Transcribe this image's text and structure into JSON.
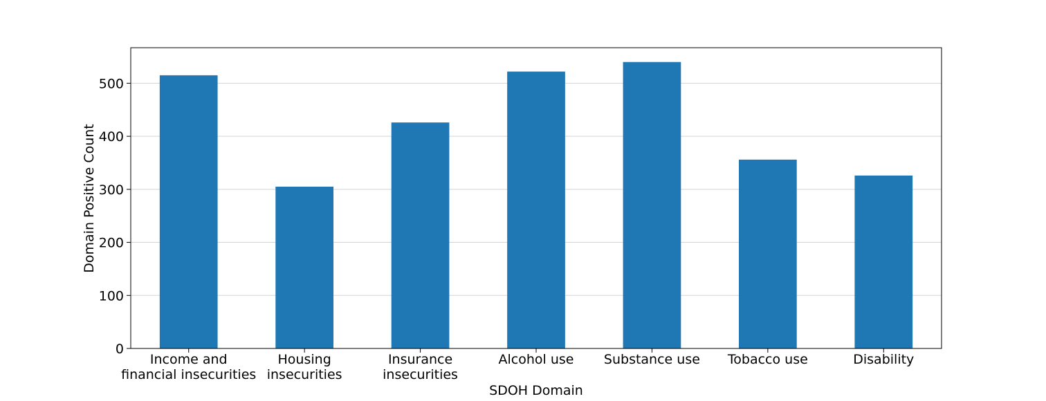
{
  "chart_data": {
    "type": "bar",
    "title": "",
    "xlabel": "SDOH Domain",
    "ylabel": "Domain Positive Count",
    "categories": [
      [
        "Income and",
        "financial insecurities"
      ],
      [
        "Housing",
        "insecurities"
      ],
      [
        "Insurance",
        "insecurities"
      ],
      [
        "Alcohol use"
      ],
      [
        "Substance use"
      ],
      [
        "Tobacco use"
      ],
      [
        "Disability"
      ]
    ],
    "values": [
      515,
      305,
      426,
      522,
      540,
      356,
      326
    ],
    "ylim": [
      0,
      567
    ],
    "yticks": [
      0,
      100,
      200,
      300,
      400,
      500
    ],
    "grid": {
      "y": true,
      "x": false
    },
    "colors": {
      "bar": "#1f77b4",
      "grid": "#d3d3d3",
      "axis": "#000000"
    }
  }
}
